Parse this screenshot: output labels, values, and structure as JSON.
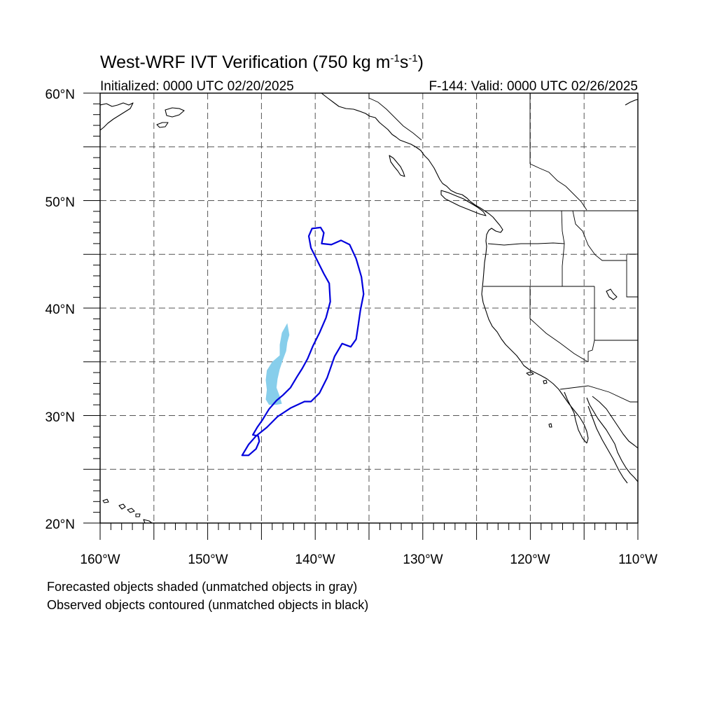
{
  "title": {
    "main": "West-WRF IVT Verification (750 kg m",
    "sup1": "-1",
    "mid": "s",
    "sup2": "-1",
    "end": ")"
  },
  "subtitle": {
    "initialized": "Initialized: 0000 UTC 02/20/2025",
    "valid": "F-144: Valid: 0000 UTC 02/26/2025"
  },
  "axes": {
    "lat": {
      "range": [
        20,
        60
      ],
      "major_step": 10,
      "minor_step": 1,
      "labels": [
        "60°N",
        "50°N",
        "40°N",
        "30°N",
        "20°N"
      ]
    },
    "lon": {
      "range": [
        -160,
        -110
      ],
      "major_step": 10,
      "minor_step": 1,
      "labels": [
        "160°W",
        "150°W",
        "140°W",
        "130°W",
        "120°W",
        "110°W"
      ]
    },
    "grid": "dashed every 5 degrees"
  },
  "legend": {
    "line1": "Forecasted objects shaded (unmatched objects in gray)",
    "line2": "Observed objects contoured (unmatched objects in black)"
  },
  "colors": {
    "forecast_fill": "#87ceeb",
    "observed_contour": "#0000dd",
    "grid": "#555555"
  },
  "objects": {
    "forecast_shaded": {
      "color": "#87ceeb",
      "lonlat": [
        [
          -142.6,
          38.6
        ],
        [
          -142.4,
          37.5
        ],
        [
          -142.6,
          36.8
        ],
        [
          -142.7,
          36.0
        ],
        [
          -143.0,
          35.2
        ],
        [
          -143.3,
          34.3
        ],
        [
          -143.5,
          33.4
        ],
        [
          -143.6,
          32.6
        ],
        [
          -143.3,
          31.8
        ],
        [
          -143.1,
          31.1
        ],
        [
          -143.6,
          31.0
        ],
        [
          -144.3,
          31.0
        ],
        [
          -144.6,
          31.5
        ],
        [
          -144.5,
          32.4
        ],
        [
          -144.6,
          33.3
        ],
        [
          -144.5,
          34.2
        ],
        [
          -144.0,
          35.0
        ],
        [
          -143.3,
          35.6
        ],
        [
          -143.3,
          36.6
        ],
        [
          -143.1,
          37.7
        ]
      ]
    },
    "observed_contour": {
      "color": "#0000dd",
      "lonlat": [
        [
          -140.3,
          47.4
        ],
        [
          -139.5,
          47.5
        ],
        [
          -139.2,
          47.0
        ],
        [
          -139.4,
          46.0
        ],
        [
          -138.5,
          45.9
        ],
        [
          -137.6,
          46.3
        ],
        [
          -136.8,
          45.9
        ],
        [
          -136.2,
          44.6
        ],
        [
          -135.7,
          42.9
        ],
        [
          -135.5,
          41.3
        ],
        [
          -135.8,
          39.8
        ],
        [
          -136.0,
          38.4
        ],
        [
          -136.2,
          37.1
        ],
        [
          -136.7,
          36.4
        ],
        [
          -137.5,
          36.7
        ],
        [
          -138.2,
          35.5
        ],
        [
          -138.9,
          33.5
        ],
        [
          -139.6,
          32.1
        ],
        [
          -140.4,
          31.3
        ],
        [
          -141.0,
          31.3
        ],
        [
          -142.3,
          30.7
        ],
        [
          -143.5,
          29.9
        ],
        [
          -144.5,
          28.9
        ],
        [
          -145.5,
          28.1
        ],
        [
          -146.2,
          27.3
        ],
        [
          -146.8,
          26.3
        ],
        [
          -146.2,
          26.3
        ],
        [
          -145.5,
          26.9
        ],
        [
          -145.2,
          27.6
        ],
        [
          -145.3,
          28.1
        ],
        [
          -145.8,
          28.2
        ],
        [
          -145.4,
          28.9
        ],
        [
          -144.9,
          29.6
        ],
        [
          -144.3,
          30.6
        ],
        [
          -143.6,
          31.4
        ],
        [
          -143.0,
          31.9
        ],
        [
          -142.3,
          32.6
        ],
        [
          -141.7,
          33.6
        ],
        [
          -141.2,
          34.4
        ],
        [
          -140.7,
          35.3
        ],
        [
          -140.2,
          36.5
        ],
        [
          -139.6,
          37.7
        ],
        [
          -139.0,
          39.1
        ],
        [
          -138.6,
          40.6
        ],
        [
          -138.7,
          42.3
        ],
        [
          -139.2,
          43.2
        ],
        [
          -139.8,
          44.4
        ],
        [
          -140.4,
          45.6
        ],
        [
          -140.6,
          46.7
        ]
      ]
    }
  }
}
